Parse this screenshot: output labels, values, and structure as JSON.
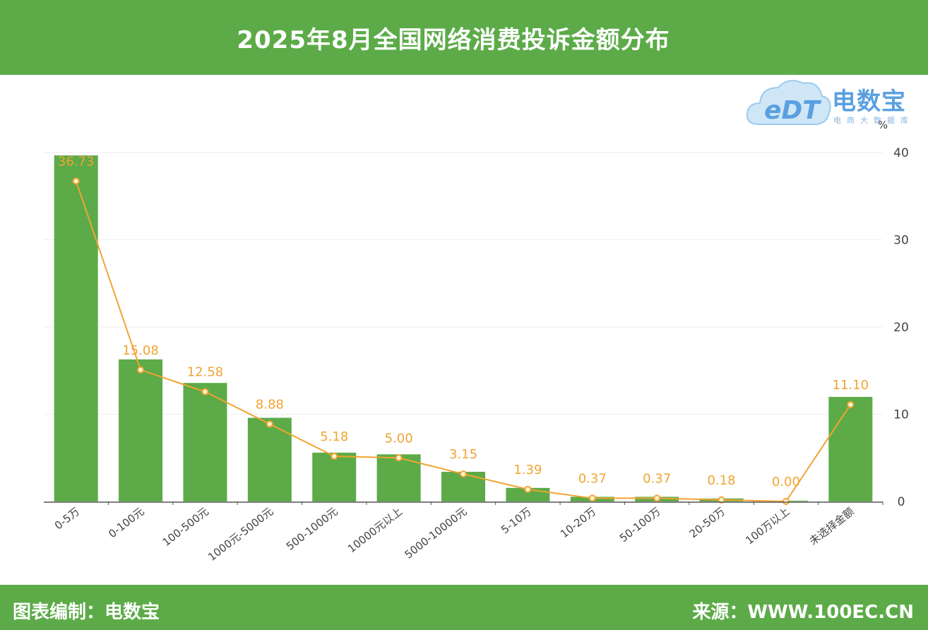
{
  "header": {
    "title": "2025年8月全国网络消费投诉金额分布"
  },
  "footer": {
    "left": "图表编制：电数宝",
    "right": "来源：WWW.100EC.CN"
  },
  "logo": {
    "mark": "eDT",
    "brand": "电数宝",
    "tagline": "电商大数据库"
  },
  "colors": {
    "bar": "#5cab48",
    "line": "#f0a432",
    "header": "#5cab48",
    "label": "#f0a432"
  },
  "chart_data": {
    "type": "bar",
    "categories": [
      "0-5万",
      "0-100元",
      "100-500元",
      "1000元-5000元",
      "500-1000元",
      "10000元以上",
      "5000-10000元",
      "5-10万",
      "10-20万",
      "50-100万",
      "20-50万",
      "100万以上",
      "未选择金额"
    ],
    "values": [
      36.73,
      15.08,
      12.58,
      8.88,
      5.18,
      5.0,
      3.15,
      1.39,
      0.37,
      0.37,
      0.18,
      0.0,
      11.1
    ],
    "data_labels": [
      "36.73",
      "15.08",
      "12.58",
      "8.88",
      "5.18",
      "5.00",
      "3.15",
      "1.39",
      "0.37",
      "0.37",
      "0.18",
      "0.00",
      "11.10"
    ],
    "overlay_line": true,
    "y_unit": "%",
    "y_axis_position": "right",
    "ylim": [
      0,
      40
    ],
    "yticks": [
      "0",
      "10",
      "20",
      "30",
      "40"
    ],
    "grid": true
  }
}
